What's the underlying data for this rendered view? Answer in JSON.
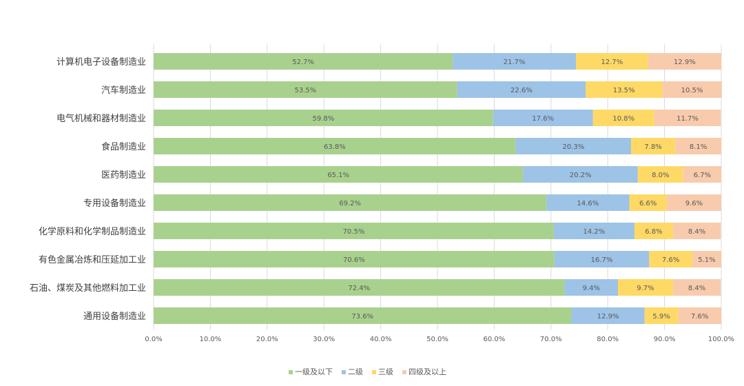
{
  "chart_data": {
    "type": "bar",
    "orientation": "horizontal",
    "stacked": true,
    "title": "",
    "xlabel": "",
    "ylabel": "",
    "xlim": [
      0,
      100
    ],
    "x_ticks": [
      "0.0%",
      "10.0%",
      "20.0%",
      "30.0%",
      "40.0%",
      "50.0%",
      "60.0%",
      "70.0%",
      "80.0%",
      "90.0%",
      "100.0%"
    ],
    "categories": [
      "计算机电子设备制造业",
      "汽车制造业",
      "电气机械和器材制造业",
      "食品制造业",
      "医药制造业",
      "专用设备制造业",
      "化学原料和化学制品制造业",
      "有色金属冶炼和压延加工业",
      "石油、煤炭及其他燃料加工业",
      "通用设备制造业"
    ],
    "series": [
      {
        "name": "一级及以下",
        "color": "#a9d18e",
        "values": [
          52.7,
          53.5,
          59.8,
          63.8,
          65.1,
          69.2,
          70.5,
          70.6,
          72.4,
          73.6
        ],
        "labels": [
          "52.7%",
          "53.5%",
          "59.8%",
          "63.8%",
          "65.1%",
          "69.2%",
          "70.5%",
          "70.6%",
          "72.4%",
          "73.6%"
        ]
      },
      {
        "name": "二级",
        "color": "#9dc3e6",
        "values": [
          21.7,
          22.6,
          17.6,
          20.3,
          20.2,
          14.6,
          14.2,
          16.7,
          9.4,
          12.9
        ],
        "labels": [
          "21.7%",
          "22.6%",
          "17.6%",
          "20.3%",
          "20.2%",
          "14.6%",
          "14.2%",
          "16.7%",
          "9.4%",
          "12.9%"
        ]
      },
      {
        "name": "三级",
        "color": "#ffd966",
        "values": [
          12.7,
          13.5,
          10.8,
          7.8,
          8.0,
          6.6,
          6.8,
          7.6,
          9.7,
          5.9
        ],
        "labels": [
          "12.7%",
          "13.5%",
          "10.8%",
          "7.8%",
          "8.0%",
          "6.6%",
          "6.8%",
          "7.6%",
          "9.7%",
          "5.9%"
        ]
      },
      {
        "name": "四级及以上",
        "color": "#f8cbad",
        "values": [
          12.9,
          10.5,
          11.7,
          8.1,
          6.7,
          9.6,
          8.4,
          5.1,
          8.4,
          7.6
        ],
        "labels": [
          "12.9%",
          "10.5%",
          "11.7%",
          "8.1%",
          "6.7%",
          "9.6%",
          "8.4%",
          "5.1%",
          "8.4%",
          "7.6%"
        ]
      }
    ],
    "grid": true,
    "legend_position": "bottom"
  }
}
